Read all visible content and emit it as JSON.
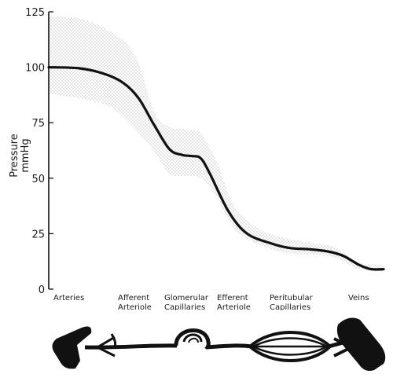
{
  "chart_data": {
    "type": "line",
    "ylabel": "Pressure",
    "yunit": "mmHg",
    "ylim": [
      0,
      125
    ],
    "yticks": [
      0,
      25,
      50,
      75,
      100,
      125
    ],
    "grid": false,
    "categories": [
      {
        "line1": "Arteries",
        "line2": ""
      },
      {
        "line1": "Afferent",
        "line2": "Arteriole"
      },
      {
        "line1": "Glomerular",
        "line2": "Capillaries"
      },
      {
        "line1": "Efferent",
        "line2": "Arteriole"
      },
      {
        "line1": "Peritubular",
        "line2": "Capillaries"
      },
      {
        "line1": "Veins",
        "line2": ""
      }
    ],
    "series": [
      {
        "role": "mean",
        "x": [
          0,
          0.5,
          0.9,
          1.2,
          1.45,
          1.7,
          1.95,
          2.15,
          2.3,
          2.45,
          2.6,
          2.9,
          3.2,
          3.6,
          3.9,
          4.2,
          4.5,
          4.75,
          5.0,
          5.2,
          5.4
        ],
        "y": [
          100,
          99.5,
          97,
          93,
          86,
          74,
          63,
          60.5,
          60,
          59,
          52,
          35,
          25,
          20.5,
          18.5,
          18,
          17,
          15,
          11,
          9,
          9
        ]
      },
      {
        "role": "range",
        "x": [
          0,
          0.5,
          1.0,
          1.4,
          1.7,
          1.95,
          2.2,
          2.45,
          2.7,
          3.0,
          3.4,
          3.8,
          4.2,
          4.6,
          5.0,
          5.4
        ],
        "upper": [
          123,
          122,
          116,
          105,
          80,
          73,
          72,
          70,
          58,
          37,
          27,
          23,
          21,
          19,
          12,
          11
        ],
        "lower": [
          88,
          86,
          82,
          72,
          62,
          52,
          51,
          50,
          42,
          27,
          20,
          16.5,
          15.5,
          14.5,
          9,
          8
        ]
      }
    ]
  },
  "figure": {
    "colors": {
      "ink": "#111111",
      "band": "#c8c8c8"
    }
  }
}
